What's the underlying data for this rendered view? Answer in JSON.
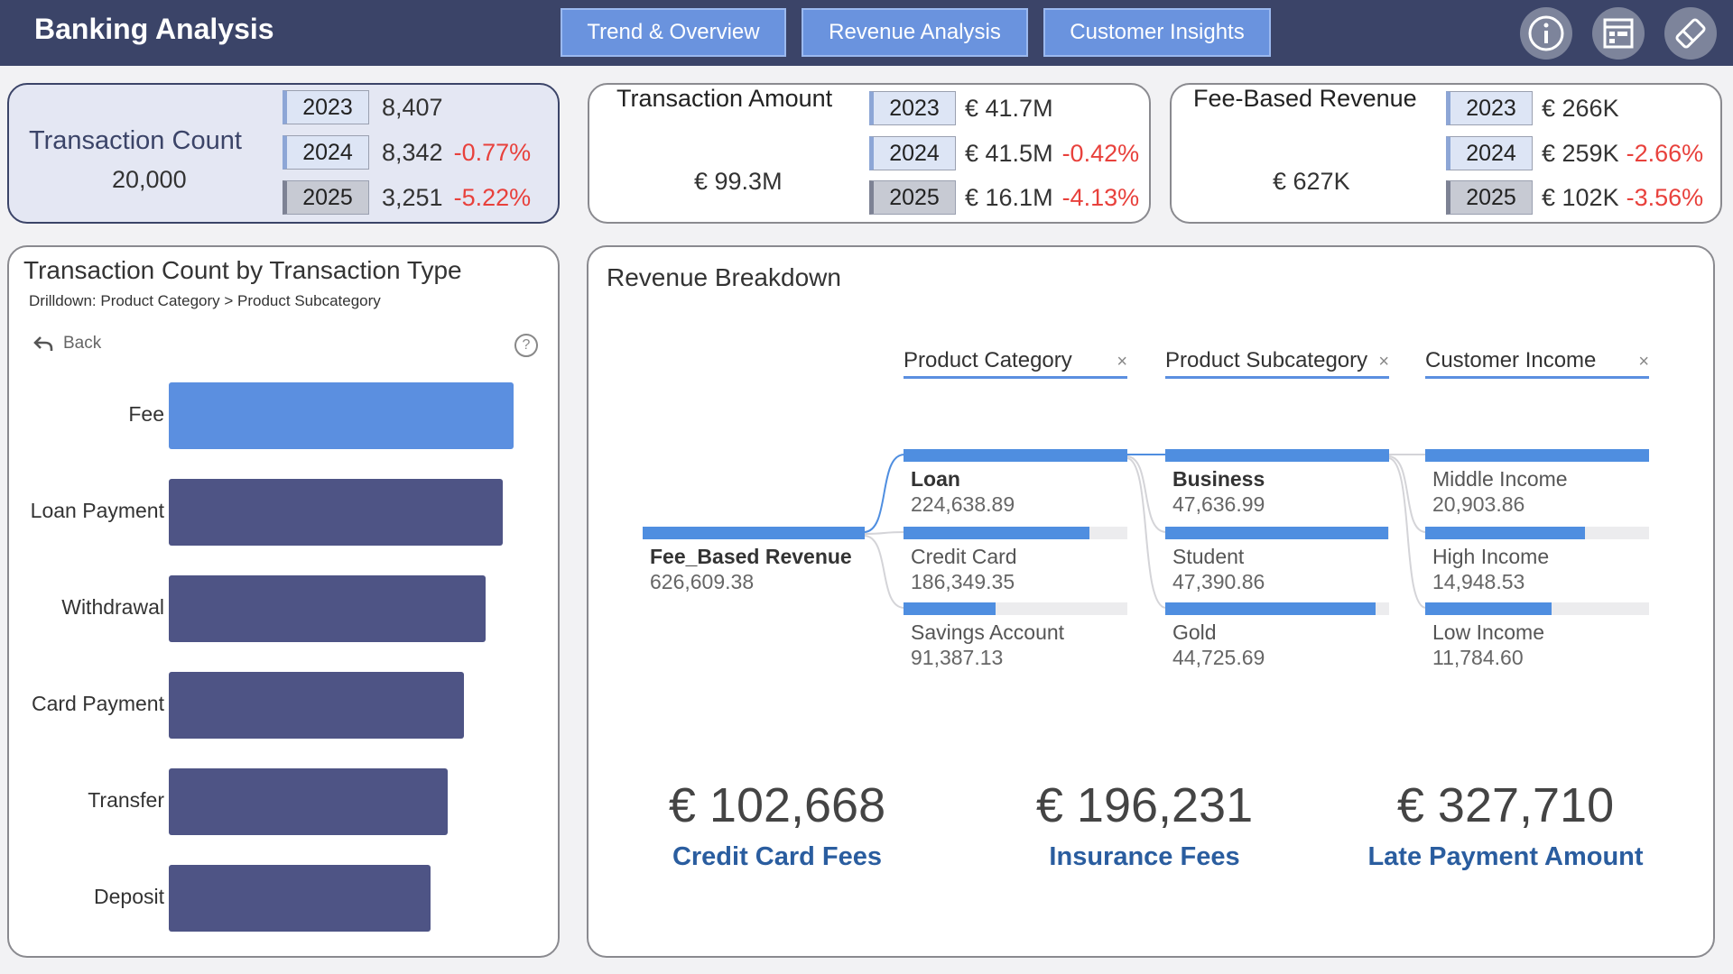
{
  "header": {
    "title": "Banking Analysis",
    "nav": [
      "Trend & Overview",
      "Revenue Analysis",
      "Customer Insights"
    ],
    "icons": [
      "info-icon",
      "report-icon",
      "eraser-icon"
    ]
  },
  "kpis": {
    "transaction_count": {
      "title": "Transaction Count",
      "total": "20,000",
      "rows": [
        {
          "year": "2023",
          "value": "8,407",
          "change": ""
        },
        {
          "year": "2024",
          "value": "8,342",
          "change": "-0.77%"
        },
        {
          "year": "2025",
          "value": "3,251",
          "change": "-5.22%"
        }
      ]
    },
    "transaction_amount": {
      "title": "Transaction Amount",
      "total": "€ 99.3M",
      "rows": [
        {
          "year": "2023",
          "value": "€ 41.7M",
          "change": ""
        },
        {
          "year": "2024",
          "value": "€ 41.5M",
          "change": "-0.42%"
        },
        {
          "year": "2025",
          "value": "€ 16.1M",
          "change": "-4.13%"
        }
      ]
    },
    "fee_revenue": {
      "title": "Fee-Based Revenue",
      "total": "€ 627K",
      "rows": [
        {
          "year": "2023",
          "value": "€ 266K",
          "change": ""
        },
        {
          "year": "2024",
          "value": "€ 259K",
          "change": "-2.66%"
        },
        {
          "year": "2025",
          "value": "€ 102K",
          "change": "-3.56%"
        }
      ]
    }
  },
  "bar_panel": {
    "title": "Transaction Count by Transaction Type",
    "drilldown": "Drilldown: Product Category > Product Subcategory",
    "back_label": "Back",
    "help": "?"
  },
  "chart_data": {
    "type": "bar",
    "orientation": "horizontal",
    "categories": [
      "Fee",
      "Loan Payment",
      "Withdrawal",
      "Card Payment",
      "Transfer",
      "Deposit"
    ],
    "values": [
      1.0,
      0.968,
      0.92,
      0.855,
      0.81,
      0.76
    ],
    "highlight": "Fee",
    "value_note": "relative bar lengths (no axis shown)"
  },
  "revenue": {
    "title": "Revenue Breakdown",
    "levels": [
      "Product Category",
      "Product Subcategory",
      "Customer Income"
    ],
    "close": "×",
    "root": {
      "name": "Fee_Based Revenue",
      "value": "626,609.38"
    },
    "category": [
      {
        "name": "Loan",
        "value": "224,638.89",
        "share": 1.0,
        "bold": true
      },
      {
        "name": "Credit Card",
        "value": "186,349.35",
        "share": 0.83,
        "bold": false
      },
      {
        "name": "Savings Account",
        "value": "91,387.13",
        "share": 0.41,
        "bold": false
      }
    ],
    "subcategory": [
      {
        "name": "Business",
        "value": "47,636.99",
        "share": 1.0,
        "bold": true
      },
      {
        "name": "Student",
        "value": "47,390.86",
        "share": 0.995,
        "bold": false
      },
      {
        "name": "Gold",
        "value": "44,725.69",
        "share": 0.94,
        "bold": false
      }
    ],
    "income": [
      {
        "name": "Middle Income",
        "value": "20,903.86",
        "share": 1.0,
        "bold": false
      },
      {
        "name": "High Income",
        "value": "14,948.53",
        "share": 0.715,
        "bold": false
      },
      {
        "name": "Low Income",
        "value": "11,784.60",
        "share": 0.564,
        "bold": false
      }
    ],
    "totals": [
      {
        "value": "€ 102,668",
        "label": "Credit Card Fees"
      },
      {
        "value": "€ 196,231",
        "label": "Insurance Fees"
      },
      {
        "value": "€ 327,710",
        "label": "Late Payment Amount"
      }
    ]
  }
}
